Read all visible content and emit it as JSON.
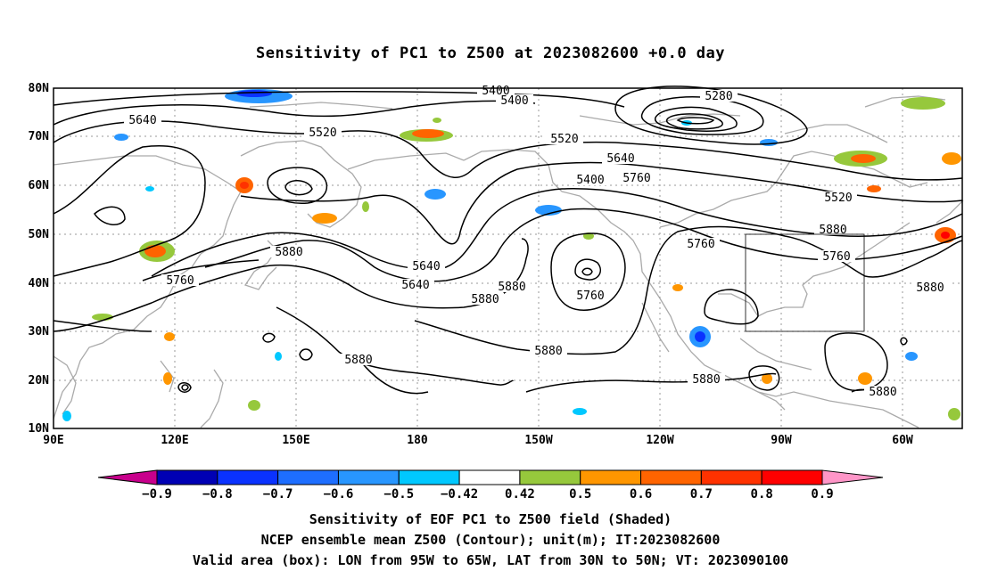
{
  "title": "Sensitivity of PC1 to Z500 at 2023082600 +0.0 day",
  "map": {
    "lat_labels": [
      "80N",
      "70N",
      "60N",
      "50N",
      "40N",
      "30N",
      "20N",
      "10N"
    ],
    "lon_labels": [
      "90E",
      "120E",
      "150E",
      "180",
      "150W",
      "120W",
      "90W",
      "60W"
    ],
    "contour_labels": [
      "5400",
      "5400",
      "5280",
      "5640",
      "5520",
      "5520",
      "5400",
      "5640",
      "5520",
      "5760",
      "5640",
      "5880",
      "5880",
      "5760",
      "5640",
      "5760",
      "5880",
      "5880",
      "5760",
      "5760",
      "5880",
      "5880",
      "5880",
      "5880",
      "5880"
    ],
    "valid_box": {
      "lon_min": -95,
      "lon_max": -65,
      "lat_min": 30,
      "lat_max": 50
    }
  },
  "colorbar": {
    "labels": [
      "−0.9",
      "−0.8",
      "−0.7",
      "−0.6",
      "−0.5",
      "−0.42",
      "0.42",
      "0.5",
      "0.6",
      "0.7",
      "0.8",
      "0.9"
    ],
    "colors": [
      "#0000b4",
      "#0a32ff",
      "#1e6eff",
      "#2896ff",
      "#00c8ff",
      "#ffffff",
      "#96c83c",
      "#ff9600",
      "#ff6400",
      "#ff3200",
      "#ff0000"
    ],
    "low_color": "#c8008c",
    "high_color": "#ff96c8"
  },
  "captions": {
    "line1": "Sensitivity of EOF PC1 to Z500 field (Shaded)",
    "line2": "NCEP ensemble mean Z500 (Contour); unit(m); IT:2023082600",
    "line3": "Valid area (box): LON from 95W to 65W, LAT from 30N to 50N; VT: 2023090100"
  }
}
